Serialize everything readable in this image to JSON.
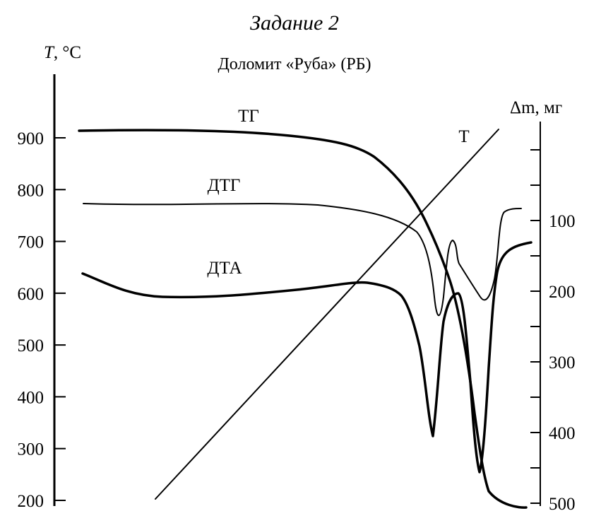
{
  "chart_data": {
    "type": "line",
    "title": "Задание 2",
    "subtitle": "Доломит «Руба» (РБ)",
    "left_axis": {
      "label_var": "T",
      "label_unit": ", °C",
      "ticks": [
        900,
        800,
        700,
        600,
        500,
        400,
        300,
        200
      ],
      "ylim": [
        200,
        900
      ]
    },
    "right_axis": {
      "label_var": "Δm",
      "label_unit": ", мг",
      "labeled_ticks": [
        "100",
        "200",
        "300",
        "400",
        "500"
      ],
      "ylim": [
        0,
        500
      ],
      "inverted": true
    },
    "series": [
      {
        "name": "ТГ",
        "color": "#000000",
        "emphasis": "thick"
      },
      {
        "name": "ДТГ",
        "color": "#000000",
        "emphasis": "thin"
      },
      {
        "name": "ДТА",
        "color": "#000000",
        "emphasis": "thick"
      },
      {
        "name": "Т",
        "color": "#000000",
        "emphasis": "thin"
      }
    ],
    "grid": false,
    "legend": "none"
  }
}
